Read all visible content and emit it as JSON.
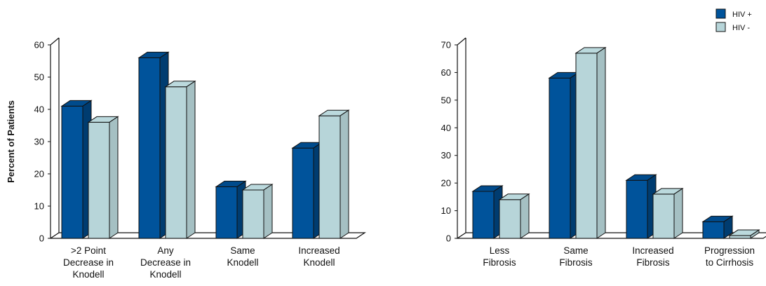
{
  "colors": {
    "series1": "#00539b",
    "series2": "#b7d5d9",
    "outline": "#111111"
  },
  "legend": {
    "position": "top-right",
    "items": [
      "HIV +",
      "HIV -"
    ]
  },
  "chart_data": [
    {
      "type": "bar",
      "ylabel": "Percent of Patients",
      "ylim": [
        0,
        60
      ],
      "yticks": [
        0,
        10,
        20,
        30,
        40,
        50,
        60
      ],
      "categories": [
        ">2 Point\nDecrease in\nKnodell",
        "Any\nDecrease in\nKnodell",
        "Same\nKnodell",
        "Increased\nKnodell"
      ],
      "series": [
        {
          "name": "HIV +",
          "values": [
            41,
            56,
            16,
            28
          ]
        },
        {
          "name": "HIV -",
          "values": [
            36,
            47,
            15,
            38
          ]
        }
      ]
    },
    {
      "type": "bar",
      "ylim": [
        0,
        70
      ],
      "yticks": [
        0,
        10,
        20,
        30,
        40,
        50,
        60,
        70
      ],
      "categories": [
        "Less\nFibrosis",
        "Same\nFibrosis",
        "Increased\nFibrosis",
        "Progression\nto Cirrhosis"
      ],
      "series": [
        {
          "name": "HIV +",
          "values": [
            17,
            58,
            21,
            6
          ]
        },
        {
          "name": "HIV -",
          "values": [
            14,
            67,
            16,
            1
          ]
        }
      ]
    }
  ]
}
